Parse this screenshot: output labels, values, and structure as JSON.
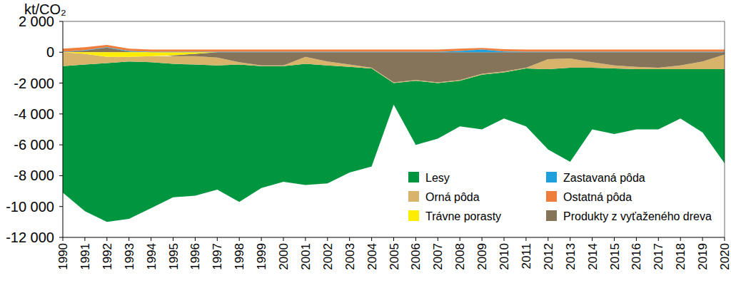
{
  "chart_data": {
    "type": "area",
    "stacked": true,
    "ylabel": "kt/CO₂",
    "x": [
      1990,
      1991,
      1992,
      1993,
      1994,
      1995,
      1996,
      1997,
      1998,
      1999,
      2000,
      2001,
      2002,
      2003,
      2004,
      2005,
      2006,
      2007,
      2008,
      2009,
      2010,
      2011,
      2012,
      2013,
      2014,
      2015,
      2016,
      2017,
      2018,
      2019,
      2020
    ],
    "xlim": [
      1990,
      2020
    ],
    "xticks": [
      1990,
      1991,
      1992,
      1993,
      1994,
      1995,
      1996,
      1997,
      1998,
      1999,
      2000,
      2001,
      2002,
      2003,
      2004,
      2005,
      2006,
      2007,
      2008,
      2009,
      2010,
      2011,
      2012,
      2013,
      2014,
      2015,
      2016,
      2017,
      2018,
      2019,
      2020
    ],
    "ylim": [
      -12000,
      2000
    ],
    "yticks": [
      {
        "value": -12000,
        "label": "-12 000"
      },
      {
        "value": -10000,
        "label": "-10 000"
      },
      {
        "value": -8000,
        "label": "-8 000"
      },
      {
        "value": -6000,
        "label": "-6 000"
      },
      {
        "value": -4000,
        "label": "-4 000"
      },
      {
        "value": -2000,
        "label": "-2 000"
      },
      0,
      {
        "value": 2000,
        "label": "2 000"
      }
    ],
    "legend": "bottom-right",
    "series": [
      {
        "name": "Lesy",
        "color": "#009640",
        "values": [
          -8200,
          -9500,
          -10300,
          -10200,
          -9450,
          -8650,
          -8500,
          -8050,
          -8900,
          -7900,
          -7500,
          -7850,
          -7650,
          -6850,
          -6350,
          -1400,
          -4150,
          -3600,
          -2950,
          -3550,
          -3000,
          -3750,
          -5200,
          -6100,
          -4000,
          -4250,
          -3900,
          -3900,
          -3200,
          -4100,
          -6100
        ]
      },
      {
        "name": "Orná pôda",
        "color": "#d8b46a",
        "values": [
          -900,
          -700,
          -400,
          -300,
          -400,
          -500,
          -550,
          -500,
          -150,
          -50,
          -50,
          -450,
          -250,
          -150,
          -50,
          -50,
          -50,
          -50,
          -50,
          -50,
          -50,
          -50,
          -650,
          -600,
          -350,
          -200,
          -150,
          -100,
          -250,
          -500,
          -950
        ]
      },
      {
        "name": "Trávne porasty",
        "color": "#ffed00",
        "values": [
          0,
          -100,
          -300,
          -300,
          -250,
          -200,
          -100,
          0,
          0,
          0,
          0,
          0,
          0,
          0,
          0,
          0,
          0,
          0,
          0,
          0,
          0,
          0,
          0,
          0,
          0,
          0,
          0,
          0,
          0,
          0,
          0
        ]
      },
      {
        "name": "Zastavaná pôda",
        "color": "#1ea0dc",
        "values": [
          30,
          30,
          30,
          30,
          30,
          30,
          30,
          30,
          30,
          30,
          30,
          30,
          30,
          30,
          30,
          30,
          30,
          30,
          80,
          180,
          50,
          30,
          30,
          30,
          30,
          30,
          30,
          30,
          30,
          30,
          30
        ]
      },
      {
        "name": "Ostatná pôda",
        "color": "#ef7d3c",
        "values": [
          200,
          200,
          150,
          150,
          150,
          150,
          150,
          150,
          150,
          150,
          150,
          150,
          150,
          150,
          150,
          150,
          150,
          150,
          150,
          100,
          150,
          150,
          150,
          150,
          150,
          150,
          150,
          150,
          150,
          150,
          150
        ]
      },
      {
        "name": "Produkty z vyťaženého dreva",
        "color": "#85745a",
        "values": [
          0,
          100,
          300,
          50,
          0,
          -50,
          -150,
          -350,
          -650,
          -850,
          -850,
          -300,
          -600,
          -800,
          -1000,
          -1950,
          -1800,
          -1950,
          -1800,
          -1400,
          -1250,
          -1000,
          -450,
          -400,
          -650,
          -850,
          -950,
          -1000,
          -850,
          -600,
          -150
        ]
      }
    ]
  }
}
